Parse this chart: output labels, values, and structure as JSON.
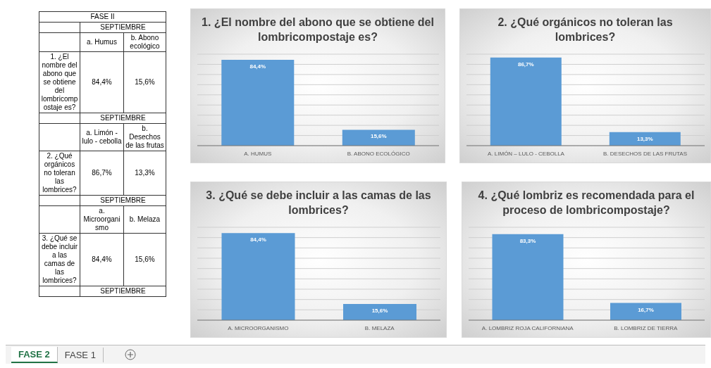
{
  "chart_data": [
    {
      "type": "other",
      "title": "FASE II",
      "annotations": [
        "SEPTIEMBRE",
        "a. Humus",
        "b. Abono ecológico",
        "1. ¿El nombre del abono que se obtiene del lombricompostaje es?",
        "84,4%",
        "15,6%",
        "SEPTIEMBRE",
        "a. Limón - lulo - cebolla",
        "b. Desechos de las frutas",
        "2. ¿Qué orgánicos no toleran las lombrices?",
        "86,7%",
        "13,3%",
        "SEPTIEMBRE",
        "a. Microorganismo",
        "b. Melaza",
        "3. ¿Qué se debe incluir a las camas de las lombrices?",
        "84,4%",
        "15,6%",
        "SEPTIEMBRE"
      ]
    },
    {
      "type": "bar",
      "title": "1. ¿El nombre del abono que se obtiene del lombricompostaje es?",
      "categories": [
        "A. HUMUS",
        "B. ABONO ECOLÓGICO"
      ],
      "values": [
        84.4,
        15.6
      ],
      "value_labels": [
        "84,4%",
        "15,6%"
      ],
      "color": "#5b9bd5",
      "grid": "y",
      "tick_labels": "x"
    },
    {
      "type": "bar",
      "title": "2. ¿Qué orgánicos no toleran las lombrices?",
      "categories": [
        "A. LIMÓN – LULO - CEBOLLA",
        "B. DESECHOS DE LAS FRUTAS"
      ],
      "values": [
        86.7,
        13.3
      ],
      "value_labels": [
        "86,7%",
        "13,3%"
      ],
      "color": "#5b9bd5",
      "grid": "y",
      "tick_labels": "x"
    },
    {
      "type": "bar",
      "title": "3. ¿Qué se debe incluir a las camas de las lombrices?",
      "categories": [
        "A. MICROORGANISMO",
        "B. MELAZA"
      ],
      "values": [
        84.4,
        15.6
      ],
      "value_labels": [
        "84,4%",
        "15,6%"
      ],
      "color": "#5b9bd5",
      "grid": "y",
      "tick_labels": "x"
    },
    {
      "type": "bar",
      "title": "4. ¿Qué lombriz es recomendada para el proceso de lombricompostaje?",
      "categories": [
        "A. LOMBRIZ ROJA CALIFORNIANA",
        "B. LOMBRIZ DE TIERRA"
      ],
      "values": [
        83.3,
        16.7
      ],
      "value_labels": [
        "83,3%",
        "16,7%"
      ],
      "color": "#5b9bd5",
      "grid": "y",
      "tick_labels": "x"
    },
    {
      "type": "other",
      "annotations": [
        "FASE 2",
        "FASE 1"
      ]
    }
  ]
}
